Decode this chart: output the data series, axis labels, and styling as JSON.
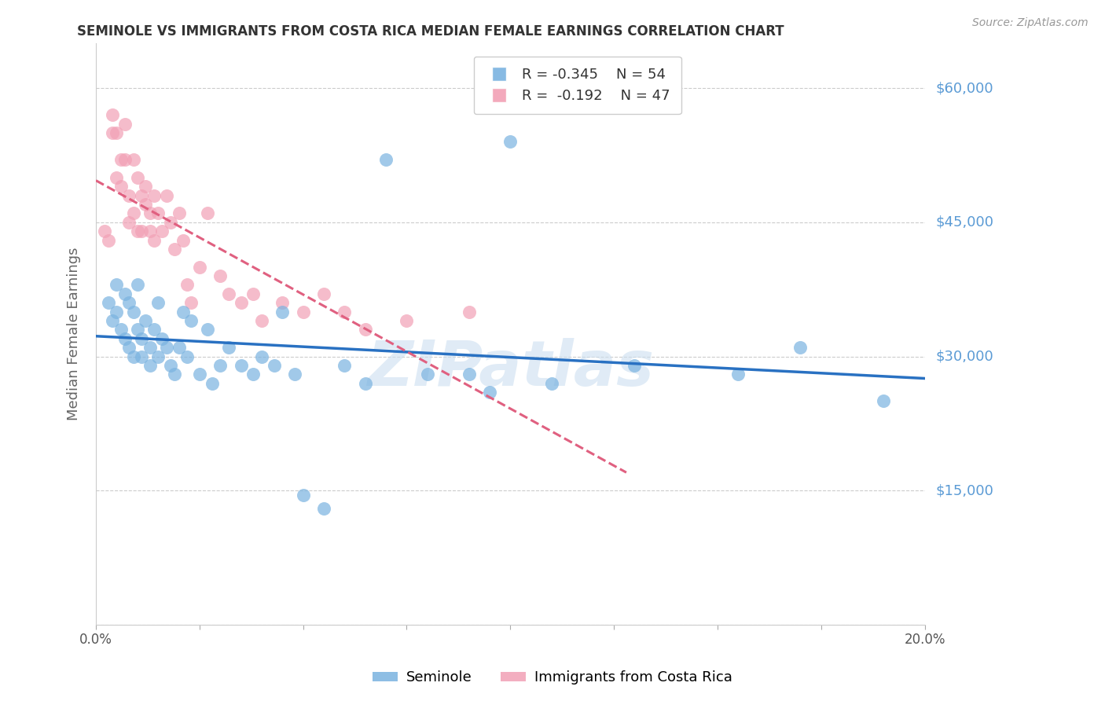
{
  "title": "SEMINOLE VS IMMIGRANTS FROM COSTA RICA MEDIAN FEMALE EARNINGS CORRELATION CHART",
  "source": "Source: ZipAtlas.com",
  "ylabel_label": "Median Female Earnings",
  "x_min": 0.0,
  "x_max": 0.2,
  "y_min": 0,
  "y_max": 65000,
  "yticks": [
    0,
    15000,
    30000,
    45000,
    60000
  ],
  "ytick_labels": [
    "",
    "$15,000",
    "$30,000",
    "$45,000",
    "$60,000"
  ],
  "xticks": [
    0.0,
    0.025,
    0.05,
    0.075,
    0.1,
    0.125,
    0.15,
    0.175,
    0.2
  ],
  "xtick_labels": [
    "0.0%",
    "",
    "",
    "",
    "",
    "",
    "",
    "",
    "20.0%"
  ],
  "seminole_color": "#7ab3e0",
  "cr_color": "#f2a0b5",
  "seminole_line_color": "#2971c2",
  "cr_line_color": "#e06080",
  "legend_R_seminole": "R = -0.345",
  "legend_N_seminole": "N = 54",
  "legend_R_cr": "R =  -0.192",
  "legend_N_cr": "N = 47",
  "watermark": "ZIPatlas",
  "seminole_x": [
    0.003,
    0.004,
    0.005,
    0.005,
    0.006,
    0.007,
    0.007,
    0.008,
    0.008,
    0.009,
    0.009,
    0.01,
    0.01,
    0.011,
    0.011,
    0.012,
    0.013,
    0.013,
    0.014,
    0.015,
    0.015,
    0.016,
    0.017,
    0.018,
    0.019,
    0.02,
    0.021,
    0.022,
    0.023,
    0.025,
    0.027,
    0.028,
    0.03,
    0.032,
    0.035,
    0.038,
    0.04,
    0.043,
    0.045,
    0.048,
    0.05,
    0.055,
    0.06,
    0.065,
    0.07,
    0.08,
    0.09,
    0.095,
    0.1,
    0.11,
    0.13,
    0.155,
    0.17,
    0.19
  ],
  "seminole_y": [
    36000,
    34000,
    38000,
    35000,
    33000,
    37000,
    32000,
    36000,
    31000,
    35000,
    30000,
    38000,
    33000,
    32000,
    30000,
    34000,
    31000,
    29000,
    33000,
    36000,
    30000,
    32000,
    31000,
    29000,
    28000,
    31000,
    35000,
    30000,
    34000,
    28000,
    33000,
    27000,
    29000,
    31000,
    29000,
    28000,
    30000,
    29000,
    35000,
    28000,
    14500,
    13000,
    29000,
    27000,
    52000,
    28000,
    28000,
    26000,
    54000,
    27000,
    29000,
    28000,
    31000,
    25000
  ],
  "cr_x": [
    0.002,
    0.003,
    0.004,
    0.004,
    0.005,
    0.005,
    0.006,
    0.006,
    0.007,
    0.007,
    0.008,
    0.008,
    0.009,
    0.009,
    0.01,
    0.01,
    0.011,
    0.011,
    0.012,
    0.012,
    0.013,
    0.013,
    0.014,
    0.014,
    0.015,
    0.016,
    0.017,
    0.018,
    0.019,
    0.02,
    0.021,
    0.022,
    0.023,
    0.025,
    0.027,
    0.03,
    0.032,
    0.035,
    0.038,
    0.04,
    0.045,
    0.05,
    0.055,
    0.06,
    0.065,
    0.075,
    0.09
  ],
  "cr_y": [
    44000,
    43000,
    55000,
    57000,
    55000,
    50000,
    52000,
    49000,
    56000,
    52000,
    48000,
    45000,
    52000,
    46000,
    50000,
    44000,
    48000,
    44000,
    49000,
    47000,
    46000,
    44000,
    48000,
    43000,
    46000,
    44000,
    48000,
    45000,
    42000,
    46000,
    43000,
    38000,
    36000,
    40000,
    46000,
    39000,
    37000,
    36000,
    37000,
    34000,
    36000,
    35000,
    37000,
    35000,
    33000,
    34000,
    35000
  ],
  "seminole_line_x": [
    0.0,
    0.2
  ],
  "cr_line_x": [
    0.0,
    0.128
  ]
}
